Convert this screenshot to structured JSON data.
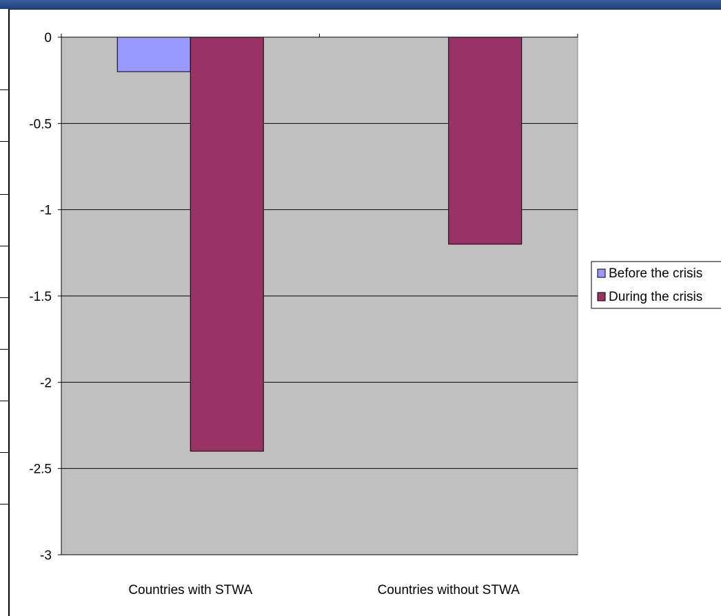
{
  "chart_data": {
    "type": "bar",
    "categories": [
      "Countries with STWA",
      "Countries without STWA"
    ],
    "series": [
      {
        "name": "Before the crisis",
        "values": [
          -0.2,
          0
        ],
        "color": "#9999ff"
      },
      {
        "name": "During the crisis",
        "values": [
          -2.4,
          -1.2
        ],
        "color": "#993366"
      }
    ],
    "ylim": [
      -3,
      0
    ],
    "yticks": [
      0,
      -0.5,
      -1,
      -1.5,
      -2,
      -2.5,
      -3
    ],
    "grid": true,
    "legend": "right",
    "plot_background": "#c0c0c0"
  }
}
